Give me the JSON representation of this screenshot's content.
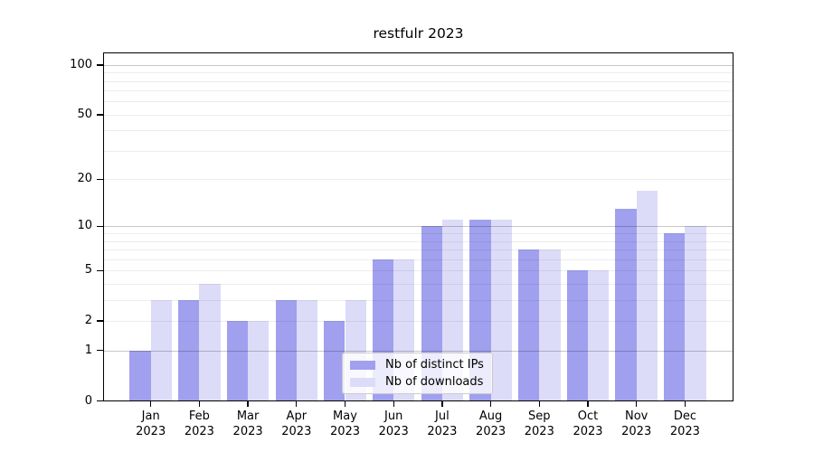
{
  "chart_data": {
    "type": "bar",
    "title": "restfulr 2023",
    "categories": [
      "Jan\n2023",
      "Feb\n2023",
      "Mar\n2023",
      "Apr\n2023",
      "May\n2023",
      "Jun\n2023",
      "Jul\n2023",
      "Aug\n2023",
      "Sep\n2023",
      "Oct\n2023",
      "Nov\n2023",
      "Dec\n2023"
    ],
    "series": [
      {
        "name": "Nb of distinct IPs",
        "color": "#a0a0ef",
        "values": [
          1,
          3,
          2,
          3,
          2,
          6,
          10,
          11,
          7,
          5,
          13,
          9
        ]
      },
      {
        "name": "Nb of downloads",
        "color": "#dcdcf8",
        "values": [
          3,
          4,
          2,
          3,
          3,
          6,
          11,
          11,
          7,
          5,
          17,
          10
        ]
      }
    ],
    "yscale": "log1p",
    "yticks": [
      0,
      1,
      2,
      5,
      10,
      20,
      50,
      100
    ],
    "ylim": [
      0,
      119
    ],
    "grid": true,
    "legend_position": "lower center inside plot",
    "colors": {
      "grid_major": "rgba(0,0,0,0.22)",
      "grid_minor": "rgba(0,0,0,0.07)",
      "spine": "#000000",
      "background": "#ffffff"
    }
  }
}
